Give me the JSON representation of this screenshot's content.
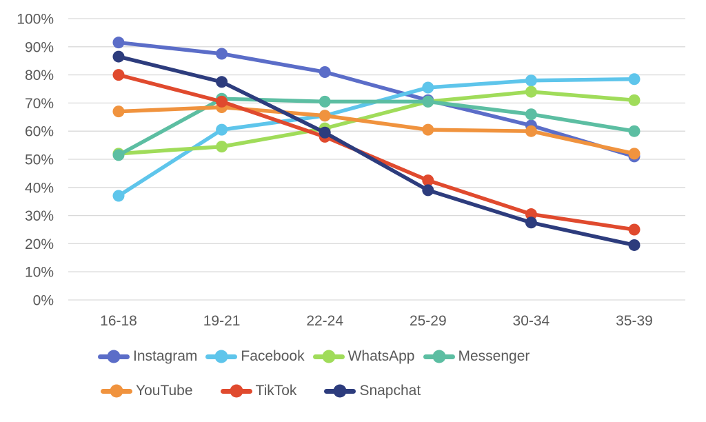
{
  "chart_data": {
    "type": "line",
    "title": "",
    "xlabel": "",
    "ylabel": "",
    "x_categories": [
      "16-18",
      "19-21",
      "22-24",
      "25-29",
      "30-34",
      "35-39"
    ],
    "y_axis": {
      "min": 0,
      "max": 100,
      "step": 10,
      "unit": "%",
      "tick_labels": [
        "0%",
        "10%",
        "20%",
        "30%",
        "40%",
        "50%",
        "60%",
        "70%",
        "80%",
        "90%",
        "100%"
      ]
    },
    "grid": "horizontal",
    "legend_position": "bottom",
    "series": [
      {
        "name": "Instagram",
        "color": "#5B6DC8",
        "values": [
          91.5,
          87.5,
          81,
          71,
          62,
          51
        ]
      },
      {
        "name": "Facebook",
        "color": "#5EC5EB",
        "values": [
          37,
          60.5,
          65.5,
          75.5,
          78,
          78.5
        ]
      },
      {
        "name": "WhatsApp",
        "color": "#A0DC5A",
        "values": [
          52,
          54.5,
          61,
          70.5,
          74,
          71
        ]
      },
      {
        "name": "Messenger",
        "color": "#5CBEA2",
        "values": [
          51.5,
          71.5,
          70.5,
          70.5,
          66,
          60
        ]
      },
      {
        "name": "YouTube",
        "color": "#F0933E",
        "values": [
          67,
          68.5,
          65.5,
          60.5,
          60,
          52
        ]
      },
      {
        "name": "TikTok",
        "color": "#E04A2E",
        "values": [
          80,
          70.5,
          58,
          42.5,
          30.5,
          25
        ]
      },
      {
        "name": "Snapchat",
        "color": "#2D3C7D",
        "values": [
          86.5,
          77.5,
          59.5,
          39,
          27.5,
          19.5
        ]
      }
    ],
    "legend_rows": [
      [
        0,
        1,
        2,
        3
      ],
      [
        4,
        5,
        6
      ]
    ]
  },
  "style": {
    "background": "#FFFFFF",
    "grid_color": "#D9D9D9",
    "text_color": "#595959"
  }
}
